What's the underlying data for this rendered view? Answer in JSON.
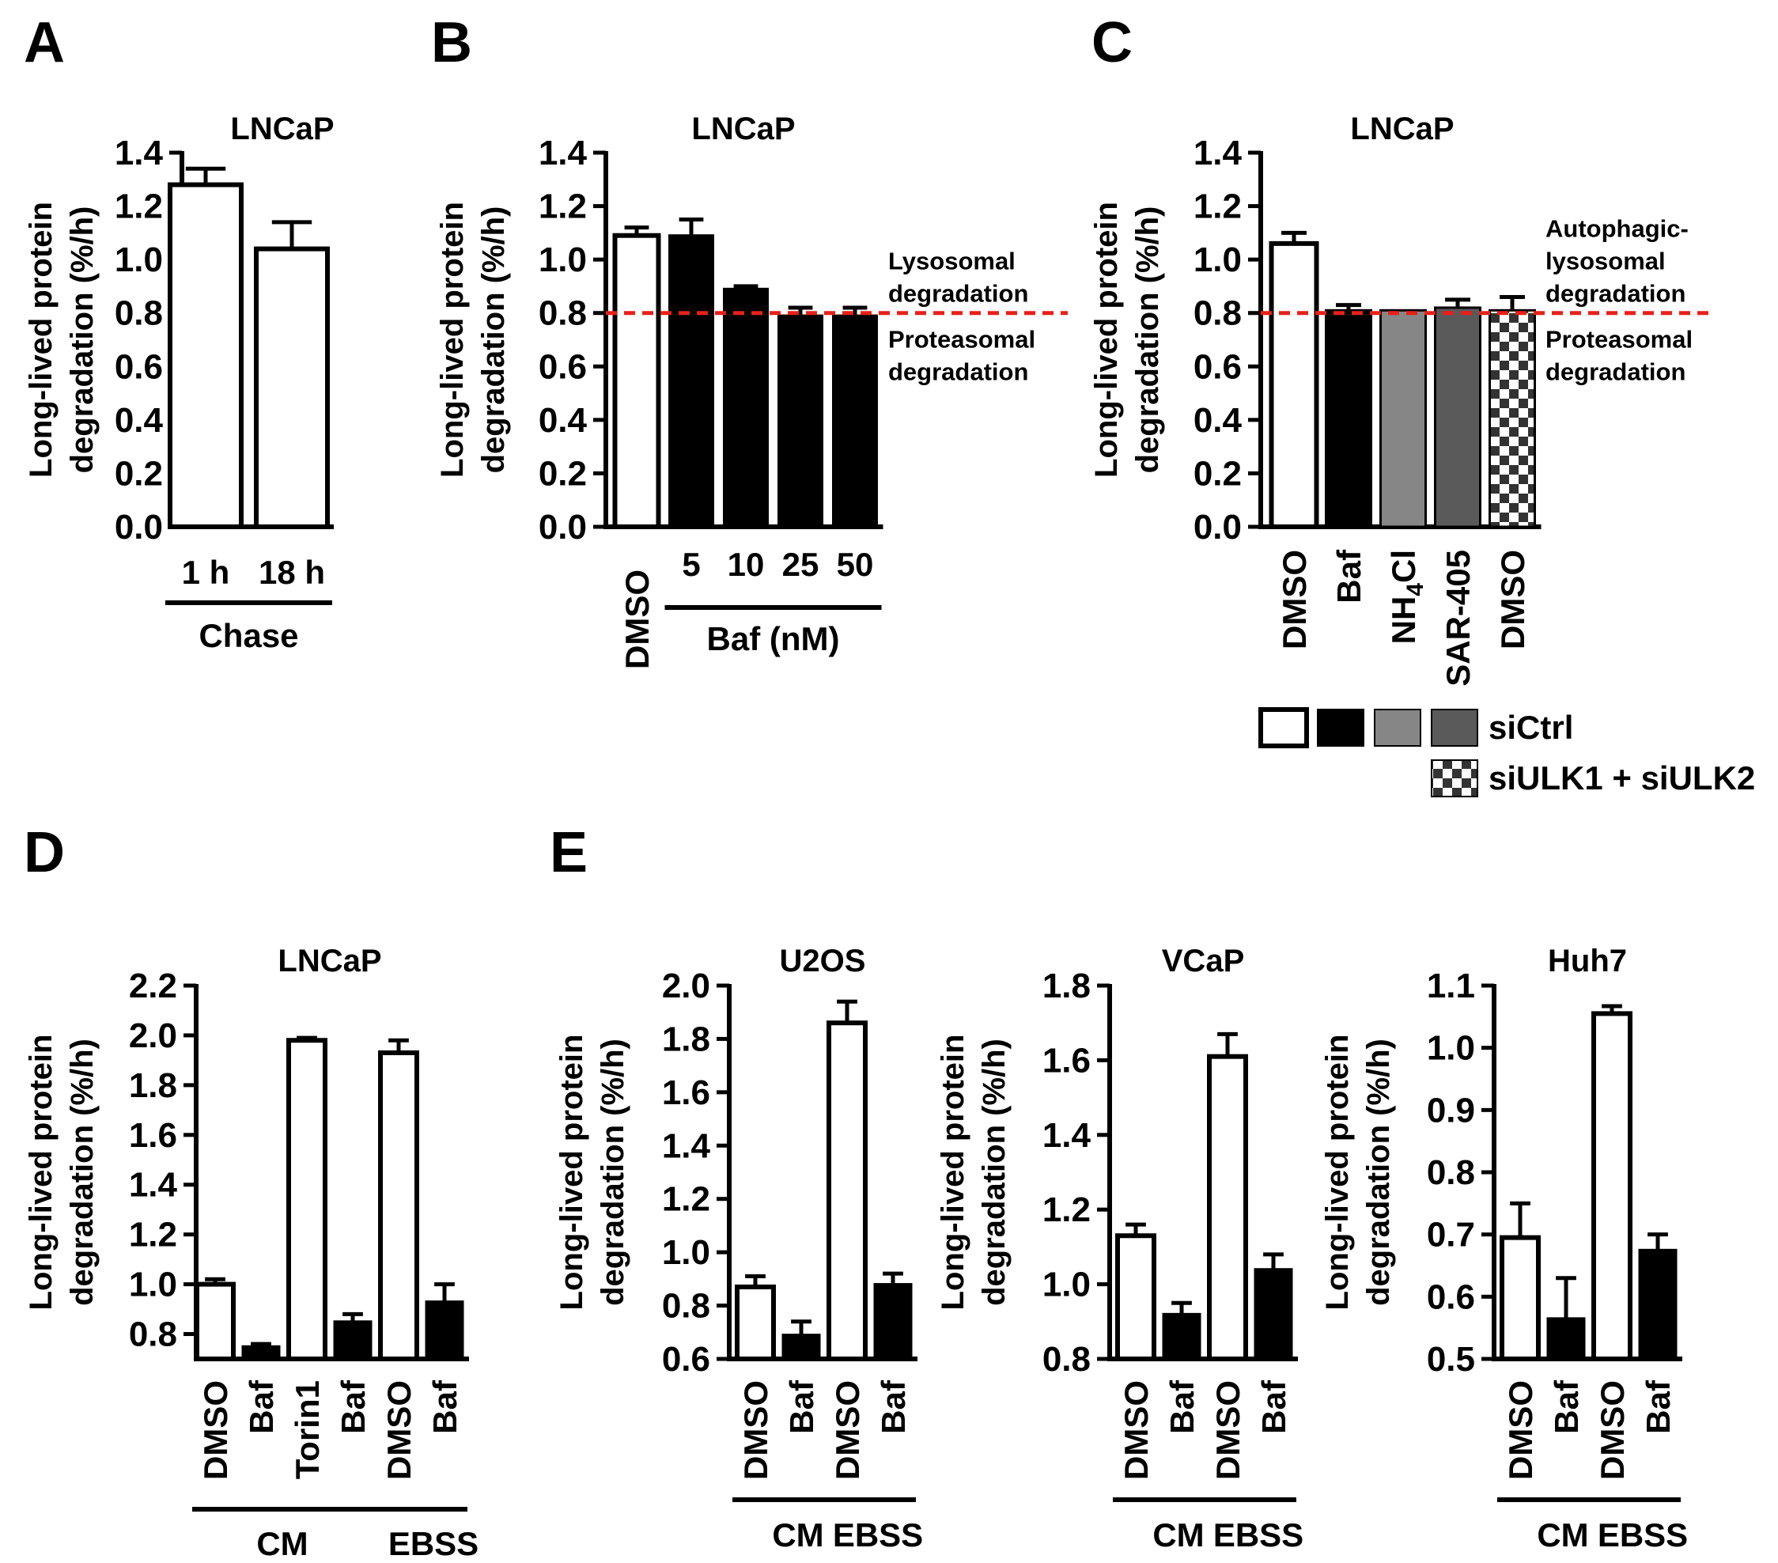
{
  "figure": {
    "panel_letters": [
      "A",
      "B",
      "C",
      "D",
      "E"
    ]
  },
  "chart_data": [
    {
      "id": "A",
      "type": "bar",
      "title": "LNCaP",
      "ylabel": [
        "Long-lived protein",
        "degradation (%/h)"
      ],
      "ylim": [
        0,
        1.4
      ],
      "yticks": [
        0.0,
        0.2,
        0.4,
        0.6,
        0.8,
        1.0,
        1.2,
        1.4
      ],
      "tick_decimals": 1,
      "categories": [
        "1 h",
        "18 h"
      ],
      "values": [
        1.28,
        1.04
      ],
      "errors": [
        0.06,
        0.1
      ],
      "fills": [
        "white",
        "white"
      ],
      "groups": [
        {
          "label": "Chase",
          "from": 0,
          "to": 1
        }
      ]
    },
    {
      "id": "B",
      "type": "bar",
      "title": "LNCaP",
      "ylabel": [
        "Long-lived protein",
        "degradation (%/h)"
      ],
      "ylim": [
        0,
        1.4
      ],
      "yticks": [
        0.0,
        0.2,
        0.4,
        0.6,
        0.8,
        1.0,
        1.2,
        1.4
      ],
      "tick_decimals": 1,
      "categories": [
        "DMSO",
        "5",
        "10",
        "25",
        "50"
      ],
      "values": [
        1.09,
        1.09,
        0.89,
        0.79,
        0.79
      ],
      "errors": [
        0.03,
        0.06,
        0.01,
        0.03,
        0.03
      ],
      "fills": [
        "white",
        "black",
        "black",
        "black",
        "black"
      ],
      "groups": [
        {
          "label": "Baf  (nM)",
          "from": 1,
          "to": 4
        }
      ],
      "reference_line": {
        "y": 0.8,
        "color": "#e8201b",
        "above": [
          "Lysosomal",
          "degradation"
        ],
        "below": [
          "Proteasomal",
          "degradation"
        ]
      }
    },
    {
      "id": "C",
      "type": "bar",
      "title": "LNCaP",
      "ylabel": [
        "Long-lived protein",
        "degradation (%/h)"
      ],
      "ylim": [
        0,
        1.4
      ],
      "yticks": [
        0.0,
        0.2,
        0.4,
        0.6,
        0.8,
        1.0,
        1.2,
        1.4
      ],
      "tick_decimals": 1,
      "categories": [
        "DMSO",
        "Baf",
        "NH4Cl",
        "SAR-405",
        "DMSO"
      ],
      "values": [
        1.06,
        0.81,
        0.81,
        0.82,
        0.81
      ],
      "errors": [
        0.04,
        0.02,
        0.0,
        0.03,
        0.05
      ],
      "fills": [
        "white",
        "black",
        "#868686",
        "#5a5a5a",
        "checker"
      ],
      "reference_line": {
        "y": 0.8,
        "color": "#e8201b",
        "above": [
          "Autophagic-",
          "lysosomal",
          "degradation"
        ],
        "below": [
          "Proteasomal",
          "degradation"
        ]
      },
      "legend": [
        {
          "label": "siCtrl",
          "swatches": [
            "white",
            "black",
            "#868686",
            "#5a5a5a"
          ]
        },
        {
          "label": "siULK1 + siULK2",
          "swatches": [
            "checker"
          ]
        }
      ]
    },
    {
      "id": "D",
      "type": "bar",
      "title": "LNCaP",
      "ylabel": [
        "Long-lived protein",
        "degradation (%/h)"
      ],
      "ylim": [
        0.7,
        2.2
      ],
      "yticks": [
        0.8,
        1.0,
        1.2,
        1.4,
        1.6,
        1.8,
        2.0,
        2.2
      ],
      "tick_decimals": 1,
      "categories": [
        "DMSO",
        "Baf",
        "Torin1",
        "Baf",
        "DMSO",
        "Baf"
      ],
      "values": [
        1.0,
        0.75,
        1.98,
        0.85,
        1.93,
        0.93
      ],
      "errors": [
        0.02,
        0.01,
        0.01,
        0.03,
        0.05,
        0.07
      ],
      "fills": [
        "white",
        "black",
        "white",
        "black",
        "white",
        "black"
      ],
      "groups": [
        {
          "label": "CM",
          "from": 0,
          "to": 3
        },
        {
          "label": "EBSS",
          "from": 4,
          "to": 5
        }
      ]
    },
    {
      "id": "E1",
      "type": "bar",
      "title": "U2OS",
      "ylabel": [
        "Long-lived protein",
        "degradation (%/h)"
      ],
      "ylim": [
        0.6,
        2.0
      ],
      "yticks": [
        0.6,
        0.8,
        1.0,
        1.2,
        1.4,
        1.6,
        1.8,
        2.0
      ],
      "tick_decimals": 1,
      "categories": [
        "DMSO",
        "Baf",
        "DMSO",
        "Baf"
      ],
      "values": [
        0.87,
        0.69,
        1.86,
        0.88
      ],
      "errors": [
        0.04,
        0.05,
        0.08,
        0.04
      ],
      "fills": [
        "white",
        "black",
        "white",
        "black"
      ],
      "groups": [
        {
          "label": "CM",
          "from": 0,
          "to": 1
        },
        {
          "label": "EBSS",
          "from": 2,
          "to": 3
        }
      ]
    },
    {
      "id": "E2",
      "type": "bar",
      "title": "VCaP",
      "ylabel": [
        "Long-lived protein",
        "degradation (%/h)"
      ],
      "ylim": [
        0.8,
        1.8
      ],
      "yticks": [
        0.8,
        1.0,
        1.2,
        1.4,
        1.6,
        1.8
      ],
      "tick_decimals": 1,
      "categories": [
        "DMSO",
        "Baf",
        "DMSO",
        "Baf"
      ],
      "values": [
        1.13,
        0.92,
        1.61,
        1.04
      ],
      "errors": [
        0.03,
        0.03,
        0.06,
        0.04
      ],
      "fills": [
        "white",
        "black",
        "white",
        "black"
      ],
      "groups": [
        {
          "label": "CM",
          "from": 0,
          "to": 1
        },
        {
          "label": "EBSS",
          "from": 2,
          "to": 3
        }
      ]
    },
    {
      "id": "E3",
      "type": "bar",
      "title": "Huh7",
      "ylabel": [
        "Long-lived protein",
        "degradation (%/h)"
      ],
      "ylim": [
        0.5,
        1.1
      ],
      "yticks": [
        0.5,
        0.6,
        0.7,
        0.8,
        0.9,
        1.0,
        1.1
      ],
      "tick_decimals": 1,
      "categories": [
        "DMSO",
        "Baf",
        "DMSO",
        "Baf"
      ],
      "values": [
        0.695,
        0.565,
        1.055,
        0.675
      ],
      "errors": [
        0.055,
        0.065,
        0.012,
        0.025
      ],
      "fills": [
        "white",
        "black",
        "white",
        "black"
      ],
      "groups": [
        {
          "label": "CM",
          "from": 0,
          "to": 1
        },
        {
          "label": "EBSS",
          "from": 2,
          "to": 3
        }
      ]
    }
  ]
}
